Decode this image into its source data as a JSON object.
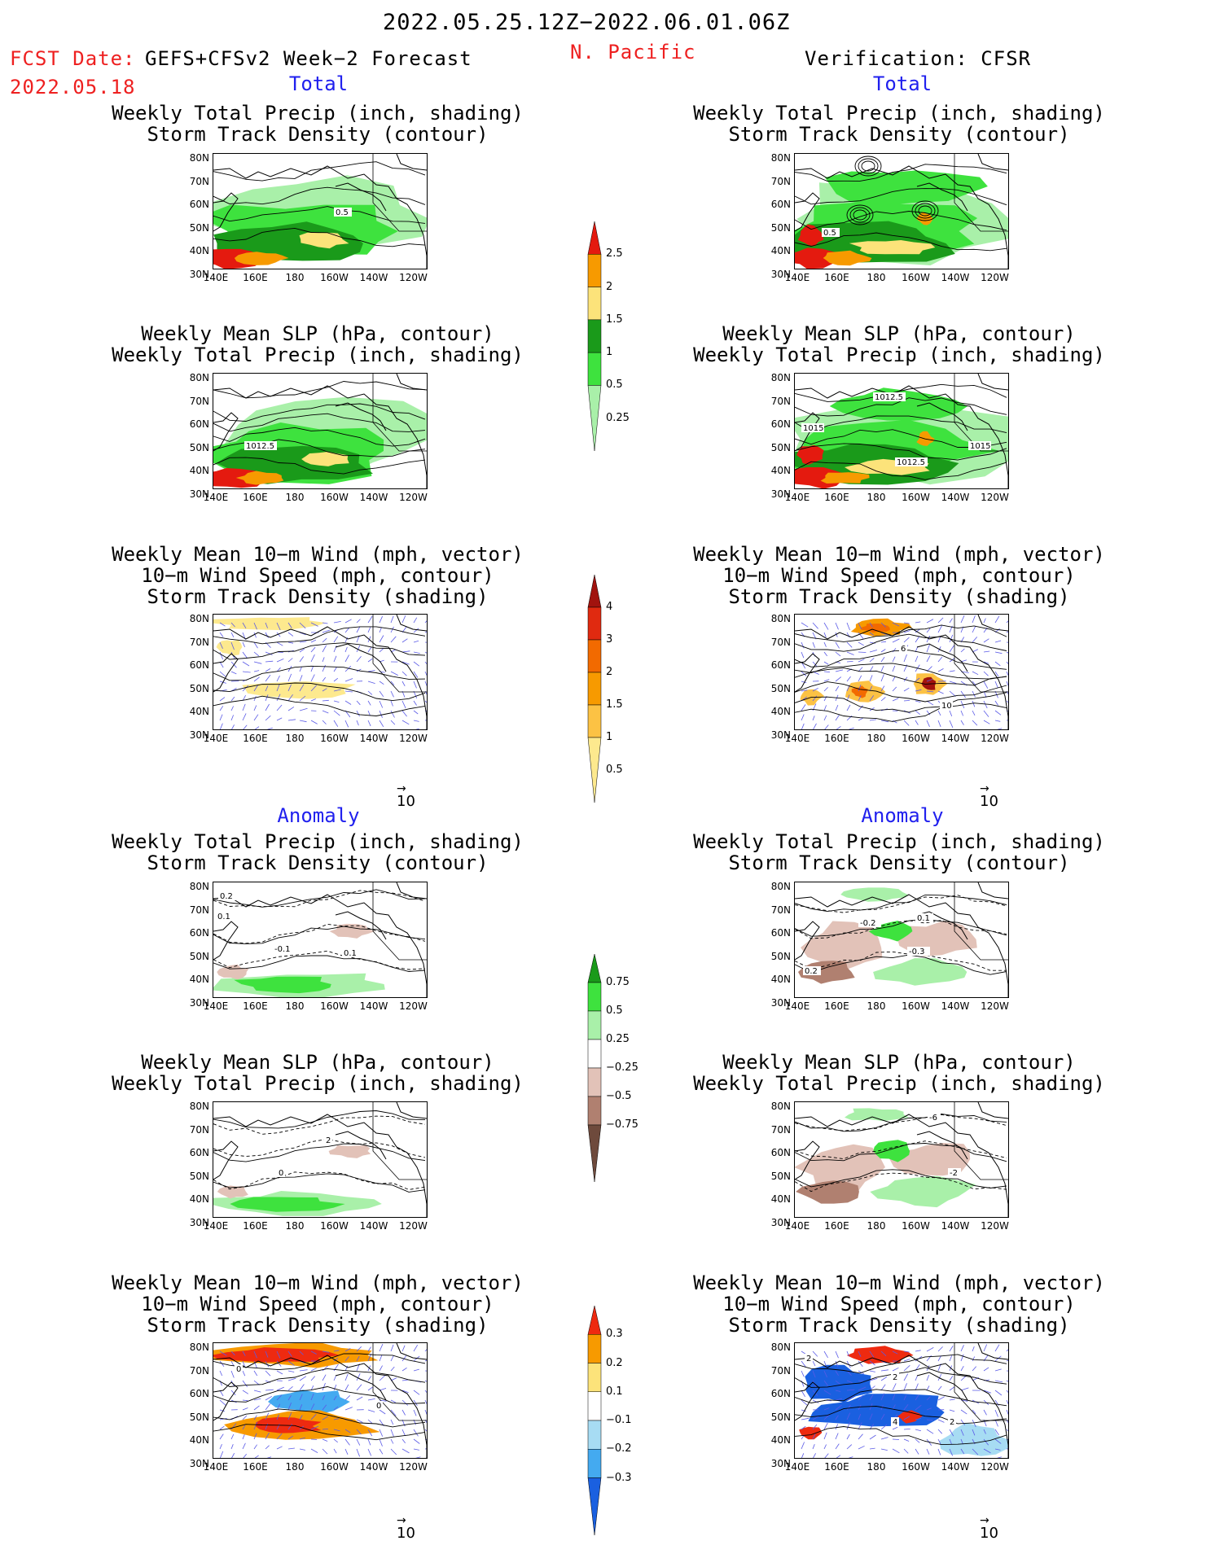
{
  "header": {
    "period": "2022.05.25.12Z−2022.06.01.06Z",
    "region": "N. Pacific",
    "fcst_date_label": "FCST Date:",
    "fcst_product": "GEFS+CFSv2 Week−2 Forecast",
    "fcst_date": "2022.05.18",
    "verification": "Verification: CFSR"
  },
  "sections": {
    "total": "Total",
    "anomaly": "Anomaly"
  },
  "titles": {
    "precip_storm": "Weekly Total Precip (inch, shading)\nStorm Track Density (contour)",
    "slp_precip": "Weekly Mean SLP (hPa, contour)\nWeekly Total Precip (inch, shading)",
    "wind_storm": "Weekly Mean 10−m Wind (mph, vector)\n10−m Wind Speed (mph, contour)\nStorm Track Density (shading)"
  },
  "axes": {
    "lat_labels": [
      "80N",
      "70N",
      "60N",
      "50N",
      "40N",
      "30N"
    ],
    "lon_labels": [
      "140E",
      "160E",
      "180",
      "160W",
      "140W",
      "120W"
    ]
  },
  "vector_ref": "10",
  "colorbars": {
    "precip_total": {
      "labels": [
        "2.5",
        "2",
        "1.5",
        "1",
        "0.5",
        "0.25"
      ],
      "colors": [
        "#e41a0f",
        "#f79a00",
        "#fce37a",
        "#1a9a1a",
        "#3ee23e",
        "#a9f0a9"
      ]
    },
    "storm_total": {
      "labels": [
        "4",
        "3",
        "2",
        "1.5",
        "1",
        "0.5"
      ],
      "colors": [
        "#a1130e",
        "#e02a10",
        "#f26a00",
        "#f79a00",
        "#fcc244",
        "#fde98e"
      ]
    },
    "precip_anom": {
      "labels": [
        "0.75",
        "0.5",
        "0.25",
        "−0.25",
        "−0.5",
        "−0.75"
      ],
      "colors": [
        "#1a9a1a",
        "#3ee23e",
        "#a9f0a9",
        "#ffffff",
        "#e2c2b8",
        "#b08070",
        "#6e4a3c"
      ]
    },
    "storm_anom": {
      "labels": [
        "0.3",
        "0.2",
        "0.1",
        "−0.1",
        "−0.2",
        "−0.3"
      ],
      "colors": [
        "#ee2a10",
        "#f79a00",
        "#fce37a",
        "#ffffff",
        "#a7dcf3",
        "#44aaf0",
        "#1a60e0"
      ]
    }
  },
  "contour_labels": {
    "fcst_precip_storm": [
      "0.5"
    ],
    "fcst_slp_precip": [
      "1012.5"
    ],
    "obs_precip_storm": [
      "0.5"
    ],
    "obs_slp_precip": [
      "1012.5",
      "1015",
      "1015",
      "1012.5"
    ],
    "obs_wind_storm": [
      "6",
      "10"
    ],
    "anom_fcst_precip_storm": [
      "0.2",
      "0.1",
      "-0.1",
      "0.1"
    ],
    "anom_fcst_slp": [
      "2",
      "0"
    ],
    "anom_obs_precip_storm": [
      "-0.2",
      "0.1",
      "-0.3",
      "0.2"
    ],
    "anom_obs_slp": [
      "-6",
      "-2"
    ],
    "anom_fcst_wind": [
      "0",
      "0"
    ],
    "anom_obs_wind": [
      "2",
      "2",
      "4",
      "2"
    ]
  }
}
